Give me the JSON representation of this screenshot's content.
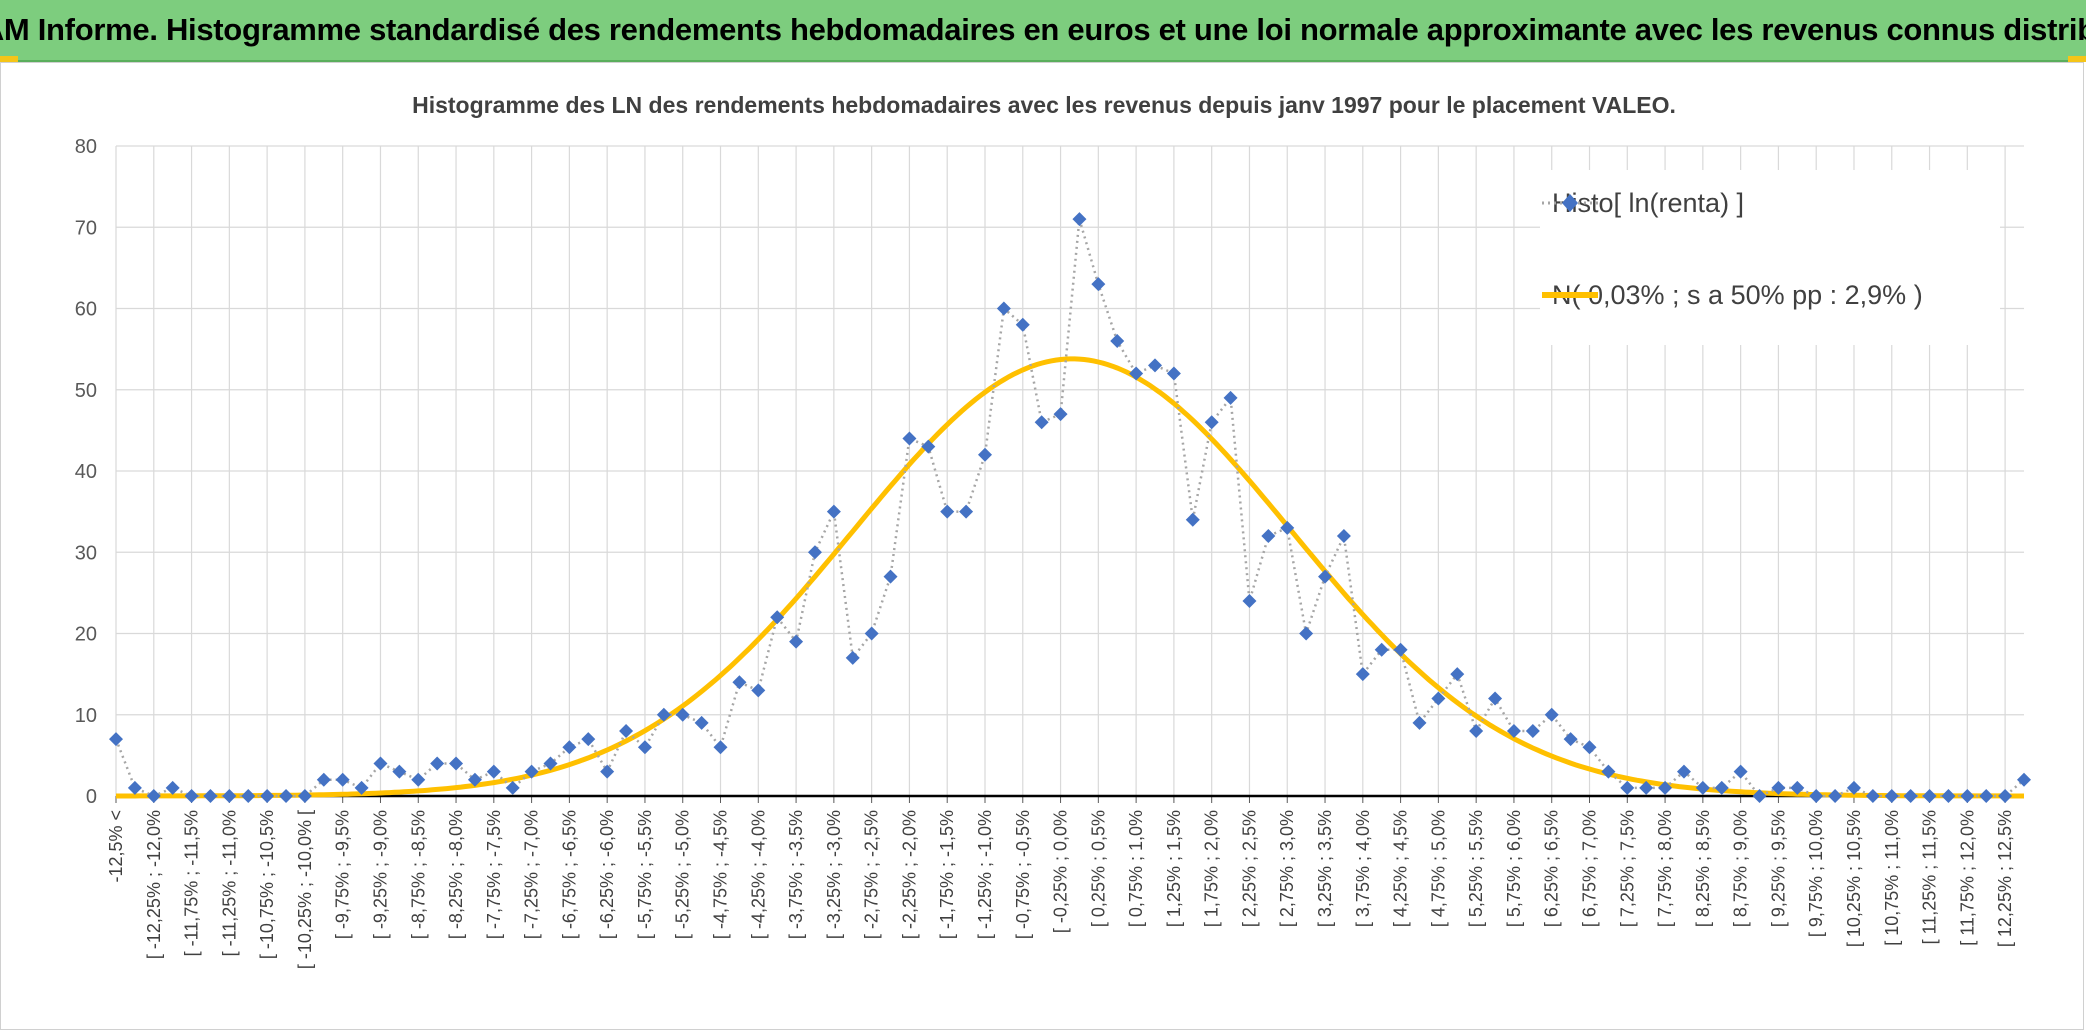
{
  "header": {
    "title": "ADAM Informe. Histogramme standardisé des rendements hebdomadaires en euros et une loi normale approximante avec les revenus connus distribués"
  },
  "colors": {
    "banner_bg": "#7dcd7e",
    "histogram": "#4472c4",
    "histogram_line": "#a6a6a6",
    "normal_curve": "#ffc000",
    "grid": "#d9d9d9",
    "corner_accent": "#f5c518"
  },
  "chart_data": {
    "type": "line",
    "title": "Histogramme des LN des rendements hebdomadaires avec les revenus depuis janv 1997 pour le placement VALEO.",
    "xlabel": "",
    "ylabel": "",
    "ylim": [
      0,
      80
    ],
    "yticks": [
      0,
      10,
      20,
      30,
      40,
      50,
      60,
      70,
      80
    ],
    "grid": true,
    "legend_position": "top-right",
    "x_labels_shown": [
      "-12,5% <",
      "[ -12,25% ; -12,0%",
      "[ -11,75% ; -11,5%",
      "[ -11,25% ; -11,0%",
      "[ -10,75% ; -10,5%",
      "[ -10,25% ; -10,0% [",
      "[ -9,75% ; -9,5%",
      "[ -9,25% ; -9,0%",
      "[ -8,75% ; -8,5%",
      "[ -8,25% ; -8,0%",
      "[ -7,75% ; -7,5%",
      "[ -7,25% ; -7,0%",
      "[ -6,75% ; -6,5%",
      "[ -6,25% ; -6,0%",
      "[ -5,75% ; -5,5%",
      "[ -5,25% ; -5,0%",
      "[ -4,75% ; -4,5%",
      "[ -4,25% ; -4,0%",
      "[ -3,75% ; -3,5%",
      "[ -3,25% ; -3,0%",
      "[ -2,75% ; -2,5%",
      "[ -2,25% ; -2,0%",
      "[ -1,75% ; -1,5%",
      "[ -1,25% ; -1,0%",
      "[ -0,75% ; -0,5%",
      "[ -0,25% ; 0,0%",
      "[ 0,25% ; 0,5%",
      "[ 0,75% ; 1,0%",
      "[ 1,25% ; 1,5%",
      "[ 1,75% ; 2,0%",
      "[ 2,25% ; 2,5%",
      "[ 2,75% ; 3,0%",
      "[ 3,25% ; 3,5%",
      "[ 3,75% ; 4,0%",
      "[ 4,25% ; 4,5%",
      "[ 4,75% ; 5,0%",
      "[ 5,25% ; 5,5%",
      "[ 5,75% ; 6,0%",
      "[ 6,25% ; 6,5%",
      "[ 6,75% ; 7,0%",
      "[ 7,25% ; 7,5%",
      "[ 7,75% ; 8,0%",
      "[ 8,25% ; 8,5%",
      "[ 8,75% ; 9,0%",
      "[ 9,25% ; 9,5%",
      "[ 9,75% ; 10,0%",
      "[ 10,25% ; 10,5%",
      "[ 10,75% ; 11,0%",
      "[ 11,25% ; 11,5%",
      "[ 11,75% ; 12,0%",
      "[ 12,25% ; 12,5%"
    ],
    "series": [
      {
        "name": "Histo[ ln(renta) ]",
        "style": "dotted line with diamond markers",
        "values": [
          7,
          1,
          0,
          1,
          0,
          0,
          0,
          0,
          0,
          0,
          0,
          2,
          2,
          1,
          4,
          3,
          2,
          4,
          4,
          2,
          3,
          1,
          3,
          4,
          6,
          7,
          3,
          8,
          6,
          10,
          10,
          9,
          6,
          14,
          13,
          22,
          19,
          30,
          35,
          17,
          20,
          27,
          44,
          43,
          35,
          35,
          42,
          60,
          58,
          46,
          47,
          71,
          63,
          56,
          52,
          53,
          52,
          34,
          46,
          49,
          24,
          32,
          33,
          20,
          27,
          32,
          15,
          18,
          18,
          9,
          12,
          15,
          8,
          12,
          8,
          8,
          10,
          7,
          6,
          3,
          1,
          1,
          1,
          3,
          1,
          1,
          3,
          0,
          1,
          1,
          0,
          0,
          1,
          0,
          0,
          0,
          0,
          0,
          0,
          0,
          0,
          2
        ]
      },
      {
        "name": "N( 0,03% ; s a 50% pp : 2,9% )",
        "style": "smooth line",
        "mean_pct": 0.03,
        "sd_pct": 2.9,
        "peak": 53.8
      }
    ]
  }
}
